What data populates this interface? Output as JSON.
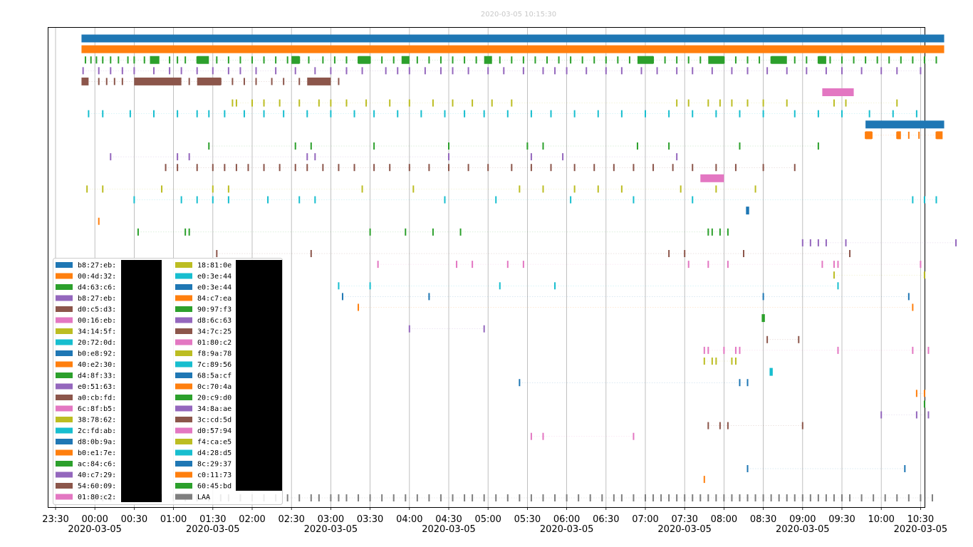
{
  "chart_data": {
    "type": "event-timeline",
    "title": "2020-03-05 10:15:30",
    "x_range": [
      "2020-03-04 23:20",
      "2020-03-05 10:20"
    ],
    "x_ticks": [
      {
        "time": "23:30",
        "date": ""
      },
      {
        "time": "00:00",
        "date": "2020-03-05"
      },
      {
        "time": "00:30",
        "date": ""
      },
      {
        "time": "01:00",
        "date": ""
      },
      {
        "time": "01:30",
        "date": "2020-03-05"
      },
      {
        "time": "02:00",
        "date": ""
      },
      {
        "time": "02:30",
        "date": ""
      },
      {
        "time": "03:00",
        "date": "2020-03-05"
      },
      {
        "time": "03:30",
        "date": ""
      },
      {
        "time": "04:00",
        "date": ""
      },
      {
        "time": "04:30",
        "date": "2020-03-05"
      },
      {
        "time": "05:00",
        "date": ""
      },
      {
        "time": "05:30",
        "date": ""
      },
      {
        "time": "06:00",
        "date": "2020-03-05"
      },
      {
        "time": "06:30",
        "date": ""
      },
      {
        "time": "07:00",
        "date": ""
      },
      {
        "time": "07:30",
        "date": "2020-03-05"
      },
      {
        "time": "08:00",
        "date": ""
      },
      {
        "time": "08:30",
        "date": ""
      },
      {
        "time": "09:00",
        "date": "2020-03-05"
      },
      {
        "time": "09:30",
        "date": ""
      },
      {
        "time": "10:00",
        "date": ""
      },
      {
        "time": "10:30",
        "date": "2020-03-05"
      }
    ],
    "colors": [
      "#1f77b4",
      "#ff7f0e",
      "#2ca02c",
      "#9467bd",
      "#8c564b",
      "#e377c2",
      "#bcbd22",
      "#17becf"
    ],
    "legend_col1": [
      "b8:27:eb:",
      "00:4d:32:",
      "d4:63:c6:",
      "b8:27:eb:",
      "d0:c5:d3:",
      "00:16:eb:",
      "34:14:5f:",
      "20:72:0d:",
      "b0:e8:92:",
      "40:e2:30:",
      "d4:8f:33:",
      "e0:51:63:",
      "a0:cb:fd:",
      "6c:8f:b5:",
      "38:78:62:",
      "2c:fd:ab:",
      "d8:0b:9a:",
      "b0:e1:7e:",
      "ac:84:c6:",
      "40:c7:29:",
      "54:60:09:",
      "01:80:c2:"
    ],
    "legend_col2": [
      "18:81:0e",
      "e0:3e:44",
      "e0:3e:44",
      "84:c7:ea",
      "90:97:f3",
      "d8:6c:63",
      "34:7c:25",
      "01:80:c2",
      "f8:9a:78",
      "7c:89:56",
      "68:5a:cf",
      "0c:70:4a",
      "20:c9:d0",
      "34:8a:ae",
      "3c:cd:5d",
      "d0:57:94",
      "f4:ca:e5",
      "d4:28:d5",
      "8c:29:37",
      "c0:11:73",
      "60:45:bd",
      "LAA"
    ],
    "series": [
      {
        "name": "b8:27:eb:",
        "dense": [
          [
            -0.17,
            10.8
          ]
        ]
      },
      {
        "name": "00:4d:32:",
        "dense": [
          [
            -0.17,
            10.8
          ]
        ]
      },
      {
        "name": "d4:63:c6:",
        "spikes": [
          -0.12,
          -0.05,
          0.02,
          0.1,
          0.2,
          0.3,
          0.42,
          0.5,
          0.63,
          0.72,
          0.8,
          0.95,
          1.05,
          1.15,
          1.3,
          1.42,
          1.55,
          1.7,
          1.85,
          2.0,
          2.15,
          2.3,
          2.45,
          2.6,
          2.72,
          2.9,
          3.05,
          3.2,
          3.35,
          3.5,
          3.65,
          3.8,
          3.95,
          4.1,
          4.25,
          4.4,
          4.55,
          4.7,
          4.85,
          5.0,
          5.15,
          5.3,
          5.45,
          5.6,
          5.75,
          5.9,
          6.05,
          6.2,
          6.35,
          6.5,
          6.65,
          6.8,
          6.95,
          7.1,
          7.25,
          7.4,
          7.55,
          7.7,
          7.85,
          8.0,
          8.15,
          8.3,
          8.45,
          8.6,
          8.75,
          8.9,
          9.05,
          9.2,
          9.35,
          9.5,
          9.65,
          9.8,
          9.95,
          10.1,
          10.25,
          10.4,
          10.55,
          10.7
        ],
        "dense": [
          [
            0.7,
            0.82
          ],
          [
            1.3,
            1.45
          ],
          [
            2.5,
            2.6
          ],
          [
            3.35,
            3.5
          ],
          [
            3.9,
            4.0
          ],
          [
            4.95,
            5.05
          ],
          [
            6.9,
            7.1
          ],
          [
            7.8,
            8.0
          ],
          [
            8.6,
            8.8
          ],
          [
            9.2,
            9.3
          ]
        ]
      },
      {
        "name": "b8:27:eb:",
        "spikes": [
          -0.15,
          0.05,
          0.2,
          0.35,
          0.5,
          0.75,
          0.95,
          1.1,
          1.3,
          1.5,
          1.7,
          1.85,
          2.05,
          2.3,
          2.55,
          2.8,
          3.0,
          3.2,
          3.4,
          3.7,
          3.85,
          4.0,
          4.2,
          4.4,
          4.55,
          4.75,
          5.0,
          5.2,
          5.45,
          5.7,
          5.85,
          6.0,
          6.25,
          6.5,
          6.7,
          6.95,
          7.15,
          7.4,
          7.6,
          7.85,
          8.1,
          8.3,
          8.55,
          8.8,
          9.05,
          9.3,
          9.5,
          9.75,
          10.0,
          10.2,
          10.5
        ]
      },
      {
        "name": "d0:c5:d3:",
        "spikes": [
          -0.1,
          0.05,
          0.15,
          0.25,
          0.35,
          0.55,
          0.7,
          0.85,
          1.0,
          1.2,
          1.35,
          1.5,
          1.6,
          1.75,
          1.9,
          2.05,
          2.25,
          2.4,
          2.6,
          2.75,
          2.95,
          3.1
        ],
        "dense": [
          [
            -0.17,
            -0.08
          ],
          [
            0.5,
            1.1
          ],
          [
            1.3,
            1.6
          ],
          [
            2.7,
            3.0
          ]
        ]
      },
      {
        "name": "00:16:eb:",
        "dense": [
          [
            9.25,
            9.65
          ]
        ]
      },
      {
        "name": "34:14:5f:",
        "spikes": [
          1.75,
          1.8,
          2.0,
          2.15,
          2.35,
          2.6,
          2.85,
          3.0,
          3.2,
          3.45,
          3.75,
          4.0,
          4.3,
          4.55,
          4.8,
          5.05,
          5.3,
          7.4,
          7.55,
          7.8,
          7.95,
          8.1,
          8.3,
          8.5,
          8.8,
          9.4,
          9.55,
          10.2
        ]
      },
      {
        "name": "20:72:0d:",
        "spikes": [
          -0.08,
          0.1,
          0.45,
          0.75,
          1.05,
          1.3,
          1.45,
          1.65,
          1.9,
          2.15,
          2.4,
          2.7,
          3.0,
          3.3,
          3.55,
          3.85,
          4.15,
          4.45,
          4.7,
          4.95,
          5.25,
          5.55,
          5.8,
          6.1,
          6.4,
          6.7,
          7.0,
          7.3,
          7.6,
          7.9,
          8.2,
          8.5,
          8.9,
          9.2,
          9.5,
          9.85,
          10.15,
          10.45
        ]
      },
      {
        "name": "b0:e8:92:",
        "dense": [
          [
            9.8,
            10.8
          ]
        ]
      },
      {
        "name": "40:e2:30:",
        "spikes": [
          9.8,
          9.88,
          10.2,
          10.35,
          10.48,
          10.7
        ],
        "dense": [
          [
            9.8,
            9.88
          ],
          [
            10.2,
            10.25
          ],
          [
            10.7,
            10.78
          ]
        ]
      },
      {
        "name": "d4:8f:33:",
        "spikes": [
          1.45,
          2.55,
          2.75,
          3.55,
          4.5,
          5.5,
          5.7,
          6.9,
          7.3,
          8.2,
          9.2
        ]
      },
      {
        "name": "e0:51:63:",
        "spikes": [
          0.2,
          1.05,
          1.2,
          2.7,
          2.8,
          4.5,
          5.55,
          5.95,
          7.4
        ]
      },
      {
        "name": "a0:cb:fd:",
        "spikes": [
          0.9,
          1.05,
          1.3,
          1.5,
          1.65,
          1.8,
          1.95,
          2.15,
          2.35,
          2.55,
          2.7,
          2.9,
          3.1,
          3.3,
          3.55,
          3.75,
          4.0,
          4.25,
          4.5,
          4.75,
          5.0,
          5.3,
          5.55,
          5.8,
          6.1,
          6.35,
          6.6,
          6.85,
          7.1,
          7.35,
          7.6,
          7.9,
          8.15,
          8.5,
          8.9
        ]
      },
      {
        "name": "6c:8f:b5:",
        "dense": [
          [
            7.7,
            8.0
          ]
        ]
      },
      {
        "name": "38:78:62:",
        "spikes": [
          -0.1,
          0.1,
          0.85,
          1.5,
          1.7,
          3.4,
          4.05,
          5.4,
          5.7,
          6.1,
          6.4,
          6.7,
          7.45,
          7.9,
          8.4
        ]
      },
      {
        "name": "2c:fd:ab:",
        "spikes": [
          0.5,
          1.1,
          1.3,
          1.5,
          1.7,
          2.2,
          2.6,
          2.8,
          4.45,
          5.1,
          6.05,
          6.85,
          7.6,
          10.4,
          10.55,
          10.7
        ]
      },
      {
        "name": "d8:0b:9a:",
        "spikes": [
          8.3
        ],
        "dense": [
          [
            8.28,
            8.32
          ]
        ]
      },
      {
        "name": "b0:e1:7e:",
        "spikes": [
          0.05
        ]
      },
      {
        "name": "ac:84:c6:",
        "spikes": [
          0.55,
          1.15,
          1.2,
          3.5,
          3.95,
          4.3,
          4.65,
          7.8,
          7.85,
          7.95,
          8.05
        ]
      },
      {
        "name": "40:c7:29:",
        "spikes": [
          9.0,
          9.1,
          9.2,
          9.3,
          9.55,
          10.95
        ]
      },
      {
        "name": "54:60:09:",
        "spikes": [
          1.55,
          2.75,
          7.3,
          7.5,
          8.25,
          9.6
        ]
      },
      {
        "name": "01:80:c2:",
        "spikes": [
          3.6,
          4.6,
          4.8,
          5.25,
          5.45,
          7.55,
          7.8,
          8.05,
          9.25,
          9.4,
          9.45,
          10.5
        ]
      },
      {
        "name": "18:81:0e",
        "spikes": [
          9.4,
          10.55
        ]
      },
      {
        "name": "e0:3e:44",
        "spikes": [
          3.1,
          3.5,
          5.15,
          5.85,
          9.45
        ]
      },
      {
        "name": "e0:3e:44",
        "spikes": [
          3.15,
          4.25,
          8.5,
          10.35
        ]
      },
      {
        "name": "84:c7:ea",
        "spikes": [
          3.35,
          10.4
        ]
      },
      {
        "name": "90:97:f3",
        "spikes": [
          8.5
        ],
        "dense": [
          [
            8.48,
            8.52
          ]
        ]
      },
      {
        "name": "d8:6c:63",
        "spikes": [
          4.0,
          4.95
        ]
      },
      {
        "name": "34:7c:25",
        "spikes": [
          8.55,
          8.95
        ]
      },
      {
        "name": "01:80:c2",
        "spikes": [
          7.75,
          7.8,
          8.0,
          8.15,
          8.2,
          9.45,
          10.4,
          10.6
        ]
      },
      {
        "name": "f8:9a:78",
        "spikes": [
          7.75,
          7.85,
          7.9,
          8.1,
          8.15
        ]
      },
      {
        "name": "7c:89:56",
        "spikes": [
          8.6
        ],
        "dense": [
          [
            8.58,
            8.62
          ]
        ]
      },
      {
        "name": "68:5a:cf",
        "spikes": [
          5.4,
          8.2,
          8.3
        ]
      },
      {
        "name": "0c:70:4a",
        "spikes": [
          10.45,
          10.55
        ]
      },
      {
        "name": "20:c9:d0",
        "spikes": [
          10.55
        ]
      },
      {
        "name": "34:8a:ae",
        "spikes": [
          10.0,
          10.45,
          10.6
        ]
      },
      {
        "name": "3c:cd:5d",
        "spikes": [
          7.8,
          7.95,
          8.05,
          9.0
        ]
      },
      {
        "name": "d0:57:94",
        "spikes": [
          5.55,
          5.7,
          6.85
        ]
      },
      {
        "name": "f4:ca:e5",
        "spikes": []
      },
      {
        "name": "d4:28:d5",
        "spikes": []
      },
      {
        "name": "8c:29:37",
        "spikes": [
          8.3,
          10.3
        ]
      },
      {
        "name": "c0:11:73",
        "spikes": [
          7.75
        ]
      },
      {
        "name": "60:45:bd",
        "spikes": []
      },
      {
        "name": "LAA",
        "color": "#7f7f7f",
        "spikes": [
          0.0,
          0.1,
          0.2,
          0.35,
          0.5,
          0.6,
          0.75,
          0.85,
          1.0,
          1.15,
          1.3,
          1.45,
          1.6,
          1.7,
          1.85,
          2.0,
          2.15,
          2.3,
          2.45,
          2.6,
          2.75,
          2.85,
          3.0,
          3.1,
          3.2,
          3.35,
          3.5,
          3.65,
          3.8,
          3.95,
          4.1,
          4.25,
          4.4,
          4.55,
          4.7,
          4.8,
          4.95,
          5.1,
          5.25,
          5.4,
          5.55,
          5.7,
          5.85,
          6.0,
          6.15,
          6.3,
          6.45,
          6.6,
          6.7,
          6.85,
          7.0,
          7.1,
          7.2,
          7.3,
          7.4,
          7.5,
          7.6,
          7.7,
          7.8,
          7.9,
          8.0,
          8.1,
          8.2,
          8.3,
          8.4,
          8.5,
          8.6,
          8.7,
          8.8,
          8.9,
          9.0,
          9.1,
          9.2,
          9.3,
          9.4,
          9.5,
          9.6,
          9.75,
          9.9,
          10.05,
          10.2,
          10.35,
          10.5,
          10.65
        ]
      }
    ]
  }
}
